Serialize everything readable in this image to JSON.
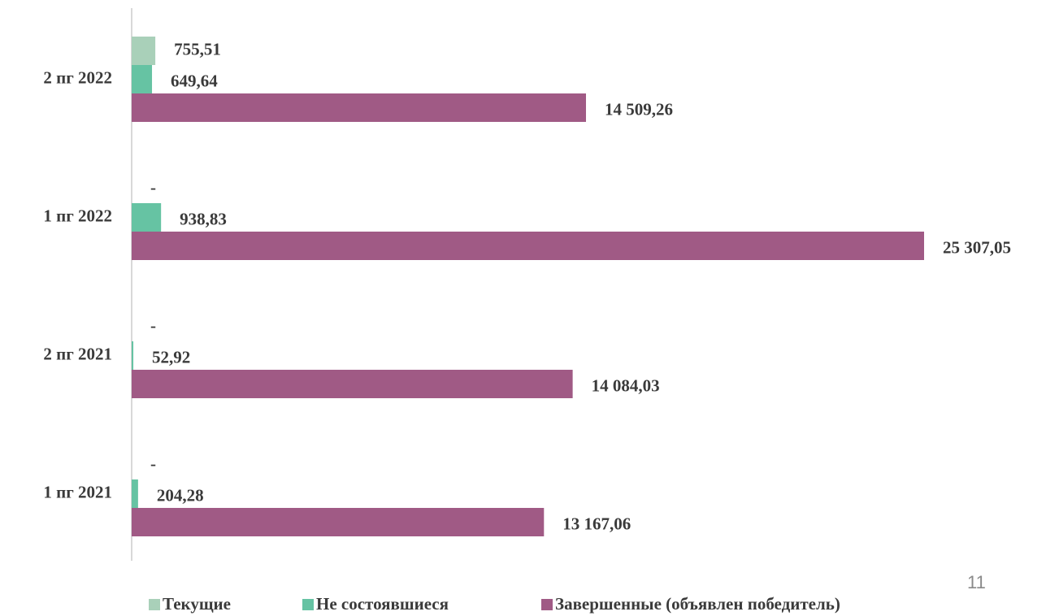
{
  "chart_data": {
    "type": "hbar",
    "categories": [
      "1 пг 2021",
      "2 пг 2021",
      "1 пг 2022",
      "2 пг 2022"
    ],
    "series": [
      {
        "name": "Текущие",
        "color": "#a9d0b9",
        "values": [
          0,
          0,
          0,
          755.51
        ],
        "value_labels": [
          "-",
          "-",
          "-",
          "755,51"
        ]
      },
      {
        "name": "Не состоявшиеся",
        "color": "#66c3a3",
        "values": [
          204.28,
          52.92,
          938.83,
          649.64
        ],
        "value_labels": [
          "204,28",
          "52,92",
          "938,83",
          "649,64"
        ]
      },
      {
        "name": "Завершенные (объявлен победитель)",
        "color": "#a05a85",
        "values": [
          13167.06,
          14084.03,
          25307.05,
          14509.26
        ],
        "value_labels": [
          "13 167,06",
          "14 084,03",
          "25 307,05",
          "14 509,26"
        ]
      }
    ],
    "legend": "bottom"
  },
  "page_number": "11"
}
